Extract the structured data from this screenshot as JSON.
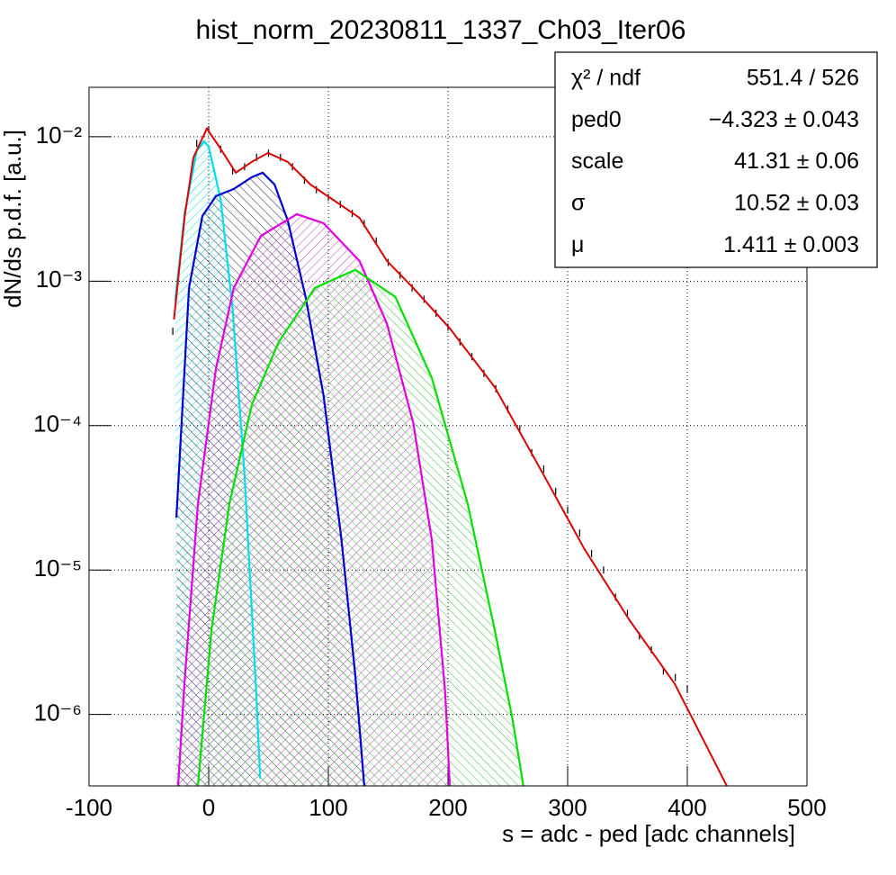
{
  "chart_data": {
    "type": "line",
    "title": "hist_norm_20230811_1337_Ch03_Iter06",
    "x_label": "s = adc - ped [adc channels]",
    "y_label": "dN/ds p.d.f. [a.u.]",
    "xlim": [
      -100,
      500
    ],
    "ylim": [
      3.2e-07,
      0.022
    ],
    "log_y": true,
    "grid": true,
    "xticks": [
      -100,
      0,
      100,
      200,
      300,
      400,
      500
    ],
    "yticks": [
      {
        "value": 1e-06,
        "label": "10⁻⁶"
      },
      {
        "value": 1e-05,
        "label": "10⁻⁵"
      },
      {
        "value": 0.0001,
        "label": "10⁻⁴"
      },
      {
        "value": 0.001,
        "label": "10⁻³"
      },
      {
        "value": 0.01,
        "label": "10⁻²"
      }
    ],
    "series": [
      {
        "style": "hatched",
        "color": "#00dcf0",
        "hatch_color": "#00dcf0",
        "x": [
          -28,
          -20,
          -10,
          -4,
          0,
          10,
          20,
          30,
          40,
          43
        ],
        "values": [
          0.00073,
          0.003,
          0.008,
          0.0093,
          0.00855,
          0.00368,
          0.00064,
          4.5e-05,
          1.27e-06,
          3.6e-07
        ]
      },
      {
        "style": "hatched",
        "color": "#0000cc",
        "hatch_color": "#202040",
        "x": [
          -27,
          -16.5,
          -5.3,
          6,
          21,
          36,
          45,
          55,
          66,
          81,
          96,
          111,
          122.5,
          130
        ],
        "values": [
          2.31e-05,
          0.000897,
          0.00283,
          0.00388,
          0.00435,
          0.00525,
          0.00564,
          0.00467,
          0.00264,
          0.000778,
          0.000161,
          1.62e-05,
          1.88e-06,
          3.2e-07
        ]
      },
      {
        "style": "hatched",
        "color": "#e000e0",
        "hatch_color": "#c040c0",
        "x": [
          -25.6,
          -20.3,
          -9,
          6,
          21,
          43.6,
          73.7,
          96,
          126,
          149,
          171,
          186.5,
          197.7,
          201.5
        ],
        "values": [
          3.2e-07,
          1.63e-06,
          2.87e-05,
          0.000247,
          0.000897,
          0.00206,
          0.00291,
          0.00252,
          0.00138,
          0.000506,
          0.000104,
          1.62e-05,
          1.41e-06,
          3.2e-07
        ]
      },
      {
        "style": "hatched",
        "color": "#00e000",
        "hatch_color": "#40c040",
        "x": [
          -9,
          2.3,
          17.3,
          36,
          58.6,
          88.7,
          122.5,
          156,
          186.5,
          216.5,
          239,
          254,
          263
        ],
        "values": [
          3.2e-07,
          3.85e-06,
          2.87e-05,
          0.000139,
          0.00038,
          0.000897,
          0.0012,
          0.000778,
          0.000214,
          2.87e-05,
          3.85e-06,
          9.2e-07,
          3.2e-07
        ]
      },
      {
        "style": "points",
        "color": "#000000",
        "x": [
          -30,
          -20,
          -10,
          0,
          10,
          20,
          30,
          40,
          50,
          60,
          70,
          80,
          90,
          100,
          110,
          120,
          130,
          140,
          150,
          160,
          170,
          180,
          190,
          200,
          210,
          220,
          230,
          240,
          250,
          260,
          270,
          280,
          290,
          300,
          310,
          320,
          330,
          340,
          350,
          360,
          370,
          380,
          390,
          400
        ],
        "values": [
          0.00045,
          0.00283,
          0.009,
          0.0112,
          0.0082,
          0.0058,
          0.0062,
          0.0072,
          0.0077,
          0.0072,
          0.0062,
          0.005,
          0.0043,
          0.0038,
          0.0034,
          0.00295,
          0.0025,
          0.0019,
          0.00135,
          0.0011,
          0.0009,
          0.00075,
          0.0006,
          0.00048,
          0.00038,
          0.0003,
          0.00023,
          0.00018,
          0.00013,
          9.5e-05,
          6.5e-05,
          5e-05,
          3.5e-05,
          2.6e-05,
          1.8e-05,
          1.3e-05,
          1e-05,
          6.5e-06,
          5e-06,
          3.5e-06,
          2.8e-06,
          2e-06,
          1.8e-06,
          1.5e-06
        ]
      },
      {
        "style": "curve",
        "color": "#dd0000",
        "x": [
          -29,
          -20,
          -12.8,
          -1.5,
          9.8,
          22.6,
          36,
          49.6,
          66,
          85,
          104,
          126,
          149,
          171,
          201.5,
          239,
          276.7,
          314,
          352,
          389.5,
          433
        ],
        "values": [
          0.000543,
          0.00283,
          0.00719,
          0.0114,
          0.0083,
          0.00564,
          0.0067,
          0.00773,
          0.0067,
          0.00467,
          0.00366,
          0.00275,
          0.00138,
          0.000897,
          0.000471,
          0.000185,
          5.09e-05,
          1.4e-05,
          4.45e-06,
          1.63e-06,
          3.2e-07
        ]
      }
    ],
    "stats": [
      {
        "label": "χ² / ndf",
        "value": "551.4 / 526"
      },
      {
        "label": "ped0",
        "value": "−4.323 ± 0.043"
      },
      {
        "label": "scale",
        "value": "41.31 ± 0.06"
      },
      {
        "label": "σ",
        "value": "10.52 ± 0.03"
      },
      {
        "label": "μ",
        "value": "1.411 ± 0.003"
      }
    ]
  }
}
